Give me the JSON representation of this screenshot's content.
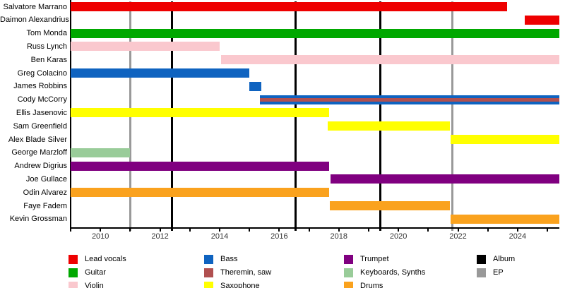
{
  "chart_data": {
    "type": "bar",
    "subtype": "timeline-gantt",
    "title": "",
    "xlabel": "",
    "ylabel": "",
    "grid": false,
    "axis": {
      "min": 2009.0,
      "max": 2025.4,
      "tick_years": [
        2009,
        2010,
        2011,
        2012,
        2013,
        2014,
        2015,
        2016,
        2017,
        2018,
        2019,
        2020,
        2021,
        2022,
        2023,
        2024,
        2025
      ],
      "label_years": [
        "2010",
        "2012",
        "2014",
        "2016",
        "2018",
        "2020",
        "2022",
        "2024"
      ]
    },
    "colors": {
      "lead_vocals": "#EE0000",
      "guitar": "#00A800",
      "violin": "#FAC8CE",
      "bass": "#0F63C0",
      "theremin_saw": "#B05050",
      "saxophone": "#FFFF00",
      "trumpet": "#800080",
      "keyboards_synths": "#99CC99",
      "drums": "#FAA21E",
      "album": "#000000",
      "ep": "#999999"
    },
    "members": [
      {
        "name": "Salvatore Marrano",
        "role": "Lead vocals",
        "color": "lead_vocals",
        "start": 2009.0,
        "end": 2023.65
      },
      {
        "name": "Daimon Alexandrius",
        "role": "Lead vocals",
        "color": "lead_vocals",
        "start": 2024.25,
        "end": 2025.4
      },
      {
        "name": "Tom Monda",
        "role": "Guitar",
        "color": "guitar",
        "start": 2009.0,
        "end": 2025.4
      },
      {
        "name": "Russ Lynch",
        "role": "Violin",
        "color": "violin",
        "start": 2009.0,
        "end": 2014.0
      },
      {
        "name": "Ben Karas",
        "role": "Violin",
        "color": "violin",
        "start": 2014.05,
        "end": 2025.4
      },
      {
        "name": "Greg Colacino",
        "role": "Bass",
        "color": "bass",
        "start": 2009.0,
        "end": 2015.0
      },
      {
        "name": "James Robbins",
        "role": "Bass",
        "color": "bass",
        "start": 2015.0,
        "end": 2015.4
      },
      {
        "name": "Cody McCorry",
        "role": "Bass / Theremin, saw",
        "color": "bass",
        "stripe": "theremin_saw",
        "start": 2015.35,
        "end": 2025.4
      },
      {
        "name": "Ellis Jasenovic",
        "role": "Saxophone",
        "color": "saxophone",
        "start": 2009.0,
        "end": 2017.68
      },
      {
        "name": "Sam Greenfield",
        "role": "Saxophone",
        "color": "saxophone",
        "start": 2017.63,
        "end": 2021.73
      },
      {
        "name": "Alex Blade Silver",
        "role": "Saxophone",
        "color": "saxophone",
        "start": 2021.75,
        "end": 2025.4
      },
      {
        "name": "George Marzloff",
        "role": "Keyboards, Synths",
        "color": "keyboards_synths",
        "start": 2009.0,
        "end": 2011.0
      },
      {
        "name": "Andrew Digrius",
        "role": "Trumpet",
        "color": "trumpet",
        "start": 2009.0,
        "end": 2017.68
      },
      {
        "name": "Joe Gullace",
        "role": "Trumpet",
        "color": "trumpet",
        "start": 2017.72,
        "end": 2025.4
      },
      {
        "name": "Odin Alvarez",
        "role": "Drums",
        "color": "drums",
        "start": 2009.0,
        "end": 2017.68
      },
      {
        "name": "Faye Fadem",
        "role": "Drums",
        "color": "drums",
        "start": 2017.7,
        "end": 2021.73
      },
      {
        "name": "Kevin Grossman",
        "role": "Drums",
        "color": "drums",
        "start": 2021.75,
        "end": 2025.4
      }
    ],
    "events": [
      {
        "year": 2011.0,
        "type": "EP"
      },
      {
        "year": 2012.4,
        "type": "Album"
      },
      {
        "year": 2016.55,
        "type": "Album"
      },
      {
        "year": 2019.4,
        "type": "Album"
      },
      {
        "year": 2021.82,
        "type": "EP"
      }
    ],
    "legend": {
      "position": "bottom",
      "columns": [
        [
          {
            "label": "Lead vocals",
            "color": "lead_vocals"
          },
          {
            "label": "Guitar",
            "color": "guitar"
          },
          {
            "label": "Violin",
            "color": "violin"
          }
        ],
        [
          {
            "label": "Bass",
            "color": "bass"
          },
          {
            "label": "Theremin, saw",
            "color": "theremin_saw"
          },
          {
            "label": "Saxophone",
            "color": "saxophone"
          }
        ],
        [
          {
            "label": "Trumpet",
            "color": "trumpet"
          },
          {
            "label": "Keyboards, Synths",
            "color": "keyboards_synths"
          },
          {
            "label": "Drums",
            "color": "drums"
          }
        ],
        [
          {
            "label": "Album",
            "color": "album"
          },
          {
            "label": "EP",
            "color": "ep"
          }
        ]
      ]
    }
  }
}
